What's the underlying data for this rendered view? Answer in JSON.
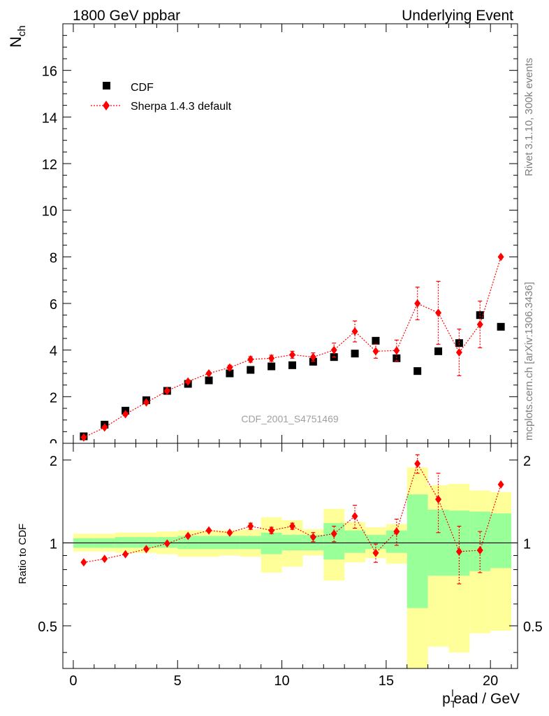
{
  "header": {
    "left": "1800 GeV ppbar",
    "right": "Underlying Event"
  },
  "side_labels": {
    "top": "Rivet 3.1.10,  300k events",
    "bottom": "mcplots.cern.ch [arXiv:1306.3436]"
  },
  "watermark": "CDF_2001_S4751469",
  "colors": {
    "data": "#000000",
    "mc": "#ff0000",
    "band_inner": "#99ff99",
    "band_outer": "#ffff99"
  },
  "chart_data": [
    {
      "type": "scatter",
      "title": "",
      "ylabel_main": "N",
      "ylabel_sub": "ch",
      "ylim": [
        0,
        18
      ],
      "yticks": [
        0,
        2,
        4,
        6,
        8,
        10,
        12,
        14,
        16
      ],
      "legend": {
        "placement": "top-left",
        "entries": [
          "CDF",
          "Sherpa 1.4.3 default"
        ]
      },
      "series": [
        {
          "name": "CDF",
          "marker": "square",
          "x": [
            0.5,
            1.5,
            2.5,
            3.5,
            4.5,
            5.5,
            6.5,
            7.5,
            8.5,
            9.5,
            10.5,
            11.5,
            12.5,
            13.5,
            14.5,
            15.5,
            16.5,
            17.5,
            18.5,
            19.5,
            20.5
          ],
          "y": [
            0.3,
            0.8,
            1.4,
            1.85,
            2.25,
            2.55,
            2.7,
            3.0,
            3.15,
            3.3,
            3.35,
            3.5,
            3.7,
            3.85,
            4.4,
            3.65,
            3.1,
            3.95,
            4.3,
            5.5,
            5.0
          ]
        },
        {
          "name": "Sherpa 1.4.3 default",
          "marker": "diamond",
          "x": [
            0.5,
            1.5,
            2.5,
            3.5,
            4.5,
            5.5,
            6.5,
            7.5,
            8.5,
            9.5,
            10.5,
            11.5,
            12.5,
            13.5,
            14.5,
            15.5,
            16.5,
            17.5,
            18.5,
            19.5,
            20.5
          ],
          "y": [
            0.25,
            0.68,
            1.25,
            1.75,
            2.25,
            2.65,
            3.0,
            3.25,
            3.6,
            3.65,
            3.8,
            3.7,
            4.0,
            4.8,
            3.95,
            3.98,
            6.0,
            5.6,
            3.9,
            5.1,
            8.0
          ],
          "err": [
            0.02,
            0.03,
            0.04,
            0.05,
            0.06,
            0.07,
            0.08,
            0.1,
            0.12,
            0.13,
            0.15,
            0.18,
            0.3,
            0.45,
            0.3,
            0.45,
            0.7,
            1.35,
            1.0,
            1.0,
            0.05
          ]
        }
      ]
    },
    {
      "type": "scatter",
      "title": "",
      "xlabel": "p_T^lead / GeV",
      "ylabel": "Ratio to CDF",
      "ylim": [
        0.35,
        2.3
      ],
      "yscale": "log",
      "yticks": [
        0.5,
        1,
        2
      ],
      "xlim": [
        -0.5,
        21.3
      ],
      "xticks": [
        0,
        5,
        10,
        15,
        20
      ],
      "bins": [
        {
          "x0": 0,
          "x1": 1,
          "inner": [
            0.96,
            1.04
          ],
          "outer": [
            0.93,
            1.08
          ]
        },
        {
          "x0": 1,
          "x1": 2,
          "inner": [
            0.96,
            1.04
          ],
          "outer": [
            0.93,
            1.08
          ]
        },
        {
          "x0": 2,
          "x1": 3,
          "inner": [
            0.96,
            1.05
          ],
          "outer": [
            0.92,
            1.09
          ]
        },
        {
          "x0": 3,
          "x1": 4,
          "inner": [
            0.96,
            1.05
          ],
          "outer": [
            0.92,
            1.09
          ]
        },
        {
          "x0": 4,
          "x1": 5,
          "inner": [
            0.96,
            1.05
          ],
          "outer": [
            0.91,
            1.1
          ]
        },
        {
          "x0": 5,
          "x1": 6,
          "inner": [
            0.95,
            1.06
          ],
          "outer": [
            0.89,
            1.11
          ]
        },
        {
          "x0": 6,
          "x1": 7,
          "inner": [
            0.95,
            1.06
          ],
          "outer": [
            0.89,
            1.11
          ]
        },
        {
          "x0": 7,
          "x1": 8,
          "inner": [
            0.95,
            1.06
          ],
          "outer": [
            0.9,
            1.11
          ]
        },
        {
          "x0": 8,
          "x1": 9,
          "inner": [
            0.95,
            1.06
          ],
          "outer": [
            0.89,
            1.12
          ]
        },
        {
          "x0": 9,
          "x1": 10,
          "inner": [
            0.91,
            1.09
          ],
          "outer": [
            0.78,
            1.24
          ]
        },
        {
          "x0": 10,
          "x1": 11,
          "inner": [
            0.94,
            1.07
          ],
          "outer": [
            0.82,
            1.21
          ]
        },
        {
          "x0": 11,
          "x1": 12,
          "inner": [
            0.94,
            1.07
          ],
          "outer": [
            0.9,
            1.12
          ]
        },
        {
          "x0": 12,
          "x1": 13,
          "inner": [
            0.87,
            1.18
          ],
          "outer": [
            0.73,
            1.33
          ]
        },
        {
          "x0": 13,
          "x1": 14,
          "inner": [
            0.92,
            1.11
          ],
          "outer": [
            0.85,
            1.19
          ]
        },
        {
          "x0": 14,
          "x1": 15,
          "inner": [
            0.95,
            1.07
          ],
          "outer": [
            0.88,
            1.14
          ]
        },
        {
          "x0": 15,
          "x1": 16,
          "inner": [
            0.92,
            1.11
          ],
          "outer": [
            0.84,
            1.17
          ]
        },
        {
          "x0": 16,
          "x1": 17,
          "inner": [
            0.58,
            1.5
          ],
          "outer": [
            0.35,
            1.88
          ]
        },
        {
          "x0": 17,
          "x1": 18,
          "inner": [
            0.76,
            1.32
          ],
          "outer": [
            0.42,
            1.62
          ]
        },
        {
          "x0": 18,
          "x1": 19,
          "inner": [
            0.76,
            1.31
          ],
          "outer": [
            0.4,
            1.64
          ]
        },
        {
          "x0": 19,
          "x1": 20,
          "inner": [
            0.79,
            1.3
          ],
          "outer": [
            0.47,
            1.55
          ]
        },
        {
          "x0": 20,
          "x1": 21,
          "inner": [
            0.81,
            1.28
          ],
          "outer": [
            0.48,
            1.53
          ]
        }
      ],
      "series": [
        {
          "name": "Sherpa 1.4.3 default",
          "x": [
            0.5,
            1.5,
            2.5,
            3.5,
            4.5,
            5.5,
            6.5,
            7.5,
            8.5,
            9.5,
            10.5,
            11.5,
            12.5,
            13.5,
            14.5,
            15.5,
            16.5,
            17.5,
            18.5,
            19.5,
            20.5
          ],
          "y": [
            0.85,
            0.875,
            0.91,
            0.95,
            0.995,
            1.06,
            1.11,
            1.09,
            1.15,
            1.11,
            1.15,
            1.05,
            1.08,
            1.25,
            0.92,
            1.1,
            1.94,
            1.44,
            0.93,
            0.94,
            1.63
          ],
          "err": [
            0.01,
            0.01,
            0.01,
            0.01,
            0.01,
            0.01,
            0.02,
            0.02,
            0.03,
            0.03,
            0.03,
            0.04,
            0.07,
            0.12,
            0.07,
            0.12,
            0.15,
            0.35,
            0.22,
            0.16,
            0.02
          ]
        }
      ]
    }
  ]
}
